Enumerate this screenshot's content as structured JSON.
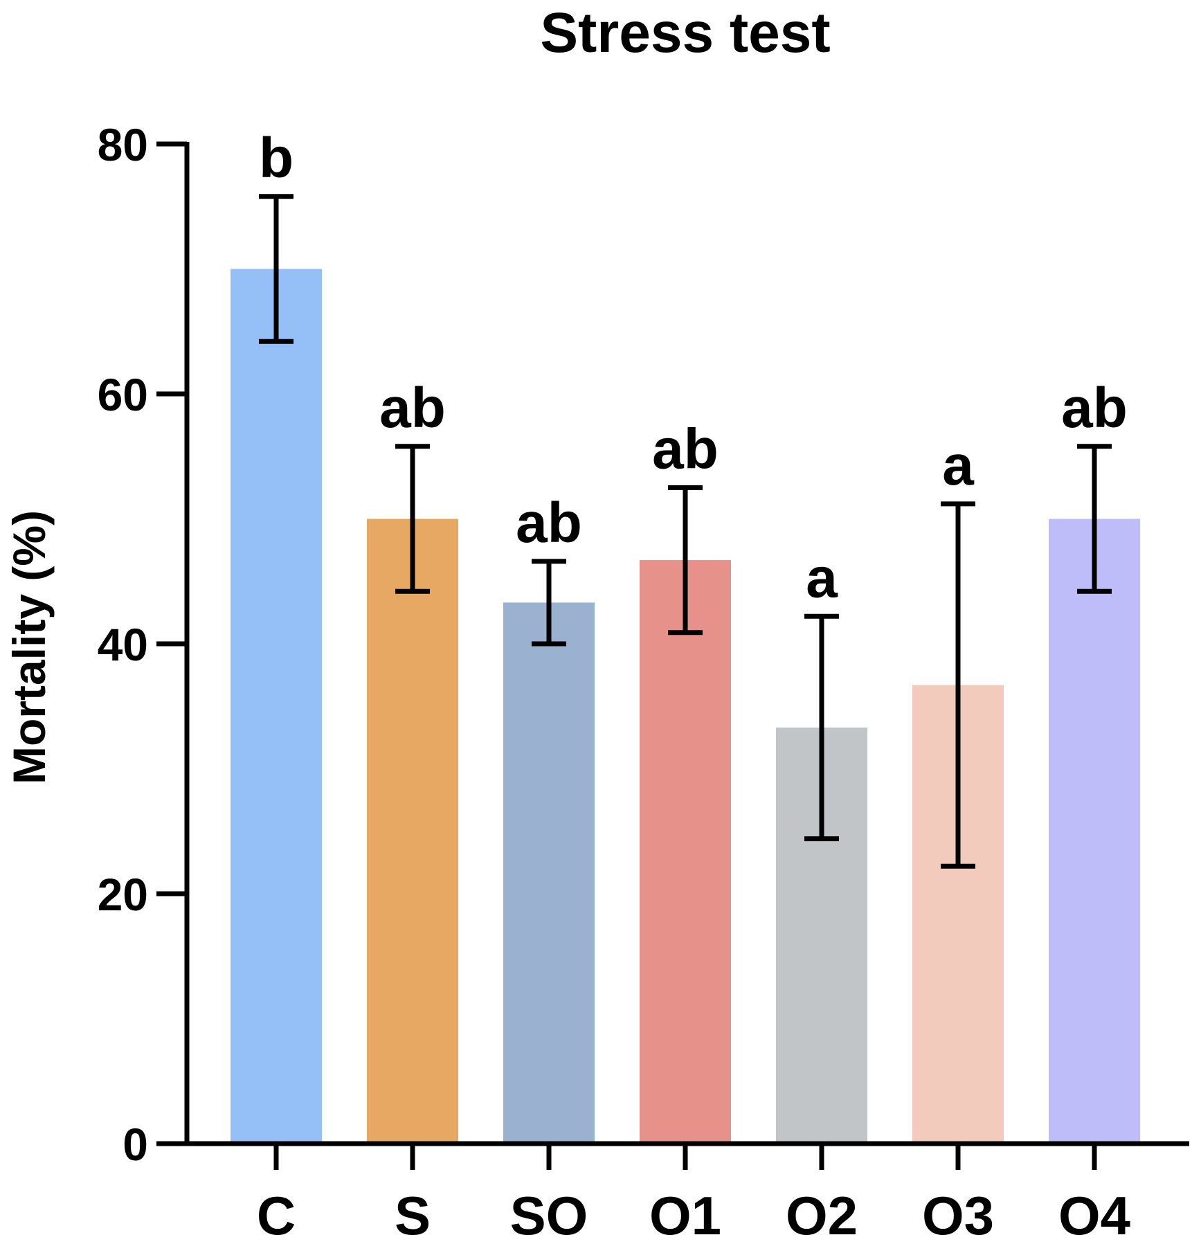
{
  "chart_data": {
    "type": "bar",
    "title": "Stress test",
    "xlabel": "",
    "ylabel": "Mortality (%)",
    "ylim": [
      0,
      80
    ],
    "yticks": [
      0,
      20,
      40,
      60,
      80
    ],
    "yticks_labels": [
      "0",
      "20",
      "40",
      "60",
      "80"
    ],
    "categories": [
      "C",
      "S",
      "SO",
      "O1",
      "O2",
      "O3",
      "O4"
    ],
    "values": [
      70.0,
      50.0,
      43.3,
      46.7,
      33.3,
      36.7,
      50.0
    ],
    "errors": [
      5.8,
      5.8,
      3.3,
      5.8,
      8.9,
      14.5,
      5.8
    ],
    "significance": [
      "b",
      "ab",
      "ab",
      "ab",
      "a",
      "a",
      "ab"
    ],
    "colors": [
      "#94bff7",
      "#e6a862",
      "#9bb1d0",
      "#e6928a",
      "#c2c5c8",
      "#f2cbbc",
      "#bfbcfa"
    ],
    "grid": false,
    "legend": false
  }
}
